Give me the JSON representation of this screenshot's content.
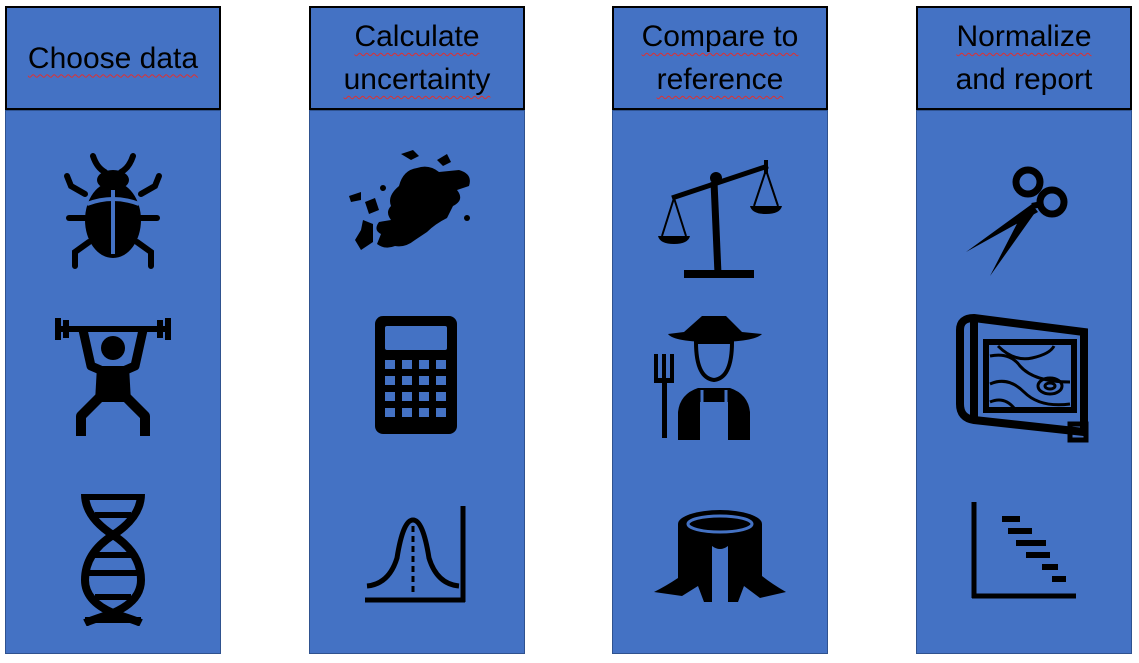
{
  "columns": [
    {
      "title_lines": [
        "Choose data"
      ],
      "icons": [
        "beetle-icon",
        "weightlifter-icon",
        "dna-icon"
      ]
    },
    {
      "title_lines": [
        "Calculate",
        "uncertainty"
      ],
      "icons": [
        "europe-map-icon",
        "calculator-icon",
        "bell-curve-icon"
      ]
    },
    {
      "title_lines": [
        "Compare to",
        "reference"
      ],
      "icons": [
        "balance-scale-icon",
        "farmer-icon",
        "tree-stump-icon"
      ]
    },
    {
      "title_lines": [
        "Normalize",
        "and report"
      ],
      "icons": [
        "scissors-icon",
        "topographic-map-icon",
        "descending-bars-chart-icon"
      ]
    }
  ],
  "colors": {
    "box_fill": "#4472C4",
    "icon": "#000000",
    "border": "#000000"
  }
}
